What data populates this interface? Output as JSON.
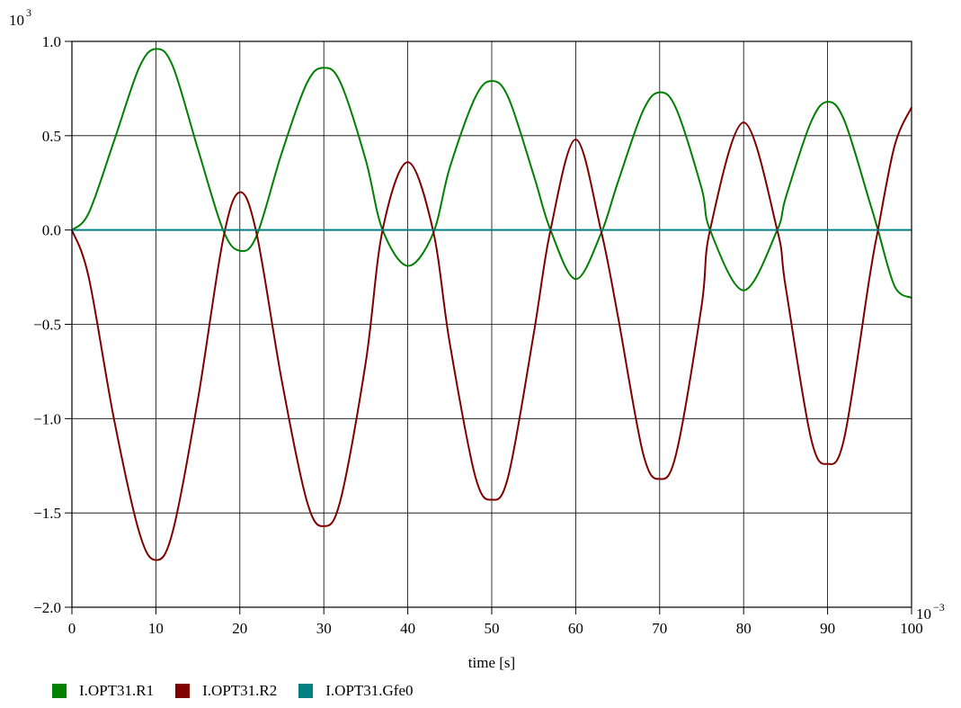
{
  "chart_data": {
    "type": "line",
    "title": "",
    "xlabel": "time [s]",
    "ylabel": "",
    "x_exponent": "10",
    "x_exponent_power": "−3",
    "y_exponent": "10",
    "y_exponent_power": "3",
    "xlim": [
      0,
      100
    ],
    "ylim": [
      -2.0,
      1.0
    ],
    "x_ticks": [
      0,
      10,
      20,
      30,
      40,
      50,
      60,
      70,
      80,
      90,
      100
    ],
    "x_tick_labels": [
      "0",
      "10",
      "20",
      "30",
      "40",
      "50",
      "60",
      "70",
      "80",
      "90",
      "100"
    ],
    "y_ticks": [
      1.0,
      0.5,
      0.0,
      -0.5,
      -1.0,
      -1.5,
      -2.0
    ],
    "y_tick_labels": [
      "1.0",
      "0.5",
      "0.0",
      "−0.5",
      "−1.0",
      "−1.5",
      "−2.0"
    ],
    "grid": true,
    "legend_position": "bottom-left",
    "x": [
      0,
      2,
      5,
      8,
      10,
      12,
      15,
      18,
      20,
      22,
      25,
      28,
      30,
      32,
      35,
      37,
      40,
      43,
      45,
      48,
      50,
      52,
      55,
      57,
      60,
      63,
      65,
      68,
      70,
      72,
      75,
      76,
      80,
      84,
      85,
      88,
      90,
      92,
      95,
      96,
      98,
      100
    ],
    "series": [
      {
        "name": "I.OPT31.R1",
        "color": "#008000",
        "values": [
          0,
          0.09,
          0.47,
          0.86,
          0.96,
          0.87,
          0.43,
          0.0,
          -0.11,
          -0.03,
          0.41,
          0.78,
          0.86,
          0.78,
          0.37,
          0.0,
          -0.19,
          -0.02,
          0.33,
          0.7,
          0.79,
          0.7,
          0.29,
          0.0,
          -0.26,
          -0.02,
          0.25,
          0.63,
          0.73,
          0.64,
          0.22,
          0.0,
          -0.32,
          0.0,
          0.17,
          0.57,
          0.68,
          0.58,
          0.15,
          0.0,
          -0.3,
          -0.36
        ]
      },
      {
        "name": "I.OPT31.R2",
        "color": "#800000",
        "values": [
          0,
          -0.25,
          -1.0,
          -1.6,
          -1.75,
          -1.6,
          -0.9,
          -0.05,
          0.2,
          -0.02,
          -0.8,
          -1.44,
          -1.57,
          -1.43,
          -0.7,
          0.0,
          0.36,
          0.0,
          -0.6,
          -1.3,
          -1.43,
          -1.3,
          -0.55,
          0.0,
          0.48,
          0.0,
          -0.45,
          -1.18,
          -1.32,
          -1.18,
          -0.4,
          0.0,
          0.57,
          0.0,
          -0.3,
          -1.1,
          -1.24,
          -1.1,
          -0.25,
          0.0,
          0.45,
          0.65
        ]
      },
      {
        "name": "I.OPT31.Gfe0",
        "color": "#008080",
        "values": [
          0,
          0,
          0,
          0,
          0,
          0,
          0,
          0,
          0,
          0,
          0,
          0,
          0,
          0,
          0,
          0,
          0,
          0,
          0,
          0,
          0,
          0,
          0,
          0,
          0,
          0,
          0,
          0,
          0,
          0,
          0,
          0,
          0,
          0,
          0,
          0,
          0,
          0,
          0,
          0,
          0,
          0
        ]
      }
    ]
  }
}
